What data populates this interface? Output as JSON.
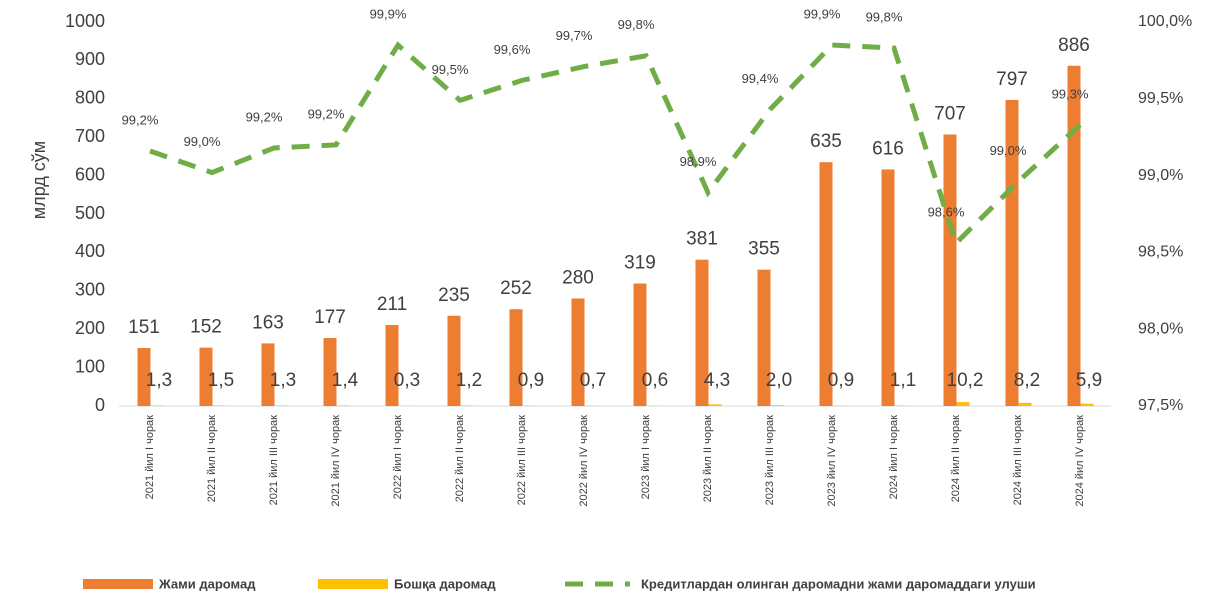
{
  "chart_data": {
    "type": "bar_line",
    "y_label": "млрд сўм",
    "categories": [
      "2021 йил I чорак",
      "2021 йил II чорак",
      "2021 йил III чорак",
      "2021 йил IV чорак",
      "2022 йил I чорак",
      "2022 йил II чорак",
      "2022 йил III чорак",
      "2022 йил IV чорак",
      "2023 йил I чорак",
      "2023 йил II чорак",
      "2023 йил III чорак",
      "2023 йил IV чорак",
      "2024 йил I чорак",
      "2024 йил II чорак",
      "2024 йил III чорак",
      "2024 йил IV чорак"
    ],
    "series": [
      {
        "name": "Жами даромад",
        "color": "#ed7d31",
        "type": "bar",
        "values": [
          151,
          152,
          163,
          177,
          211,
          235,
          252,
          280,
          319,
          381,
          355,
          635,
          616,
          707,
          797,
          886
        ]
      },
      {
        "name": "Бошқа даромад",
        "color": "#ffc000",
        "type": "bar",
        "values": [
          1.3,
          1.5,
          1.3,
          1.4,
          0.3,
          1.2,
          0.9,
          0.7,
          0.6,
          4.3,
          2.0,
          0.9,
          1.1,
          10.2,
          8.2,
          5.9
        ],
        "value_labels": [
          "1,3",
          "1,5",
          "1,3",
          "1,4",
          "0,3",
          "1,2",
          "0,9",
          "0,7",
          "0,6",
          "4,3",
          "2,0",
          "0,9",
          "1,1",
          "10,2",
          "8,2",
          "5,9"
        ]
      },
      {
        "name": "Кредитлардан олинган даромадни жами даромаддаги улуши",
        "color": "#70ad47",
        "type": "line",
        "axis": "y2",
        "values": [
          99.16,
          99.02,
          99.18,
          99.2,
          99.85,
          99.49,
          99.62,
          99.71,
          99.78,
          98.89,
          99.43,
          99.85,
          99.83,
          98.56,
          98.96,
          99.33
        ],
        "value_labels": [
          "99,2%",
          "99,0%",
          "99,2%",
          "99,2%",
          "99,9%",
          "99,5%",
          "99,6%",
          "99,7%",
          "99,8%",
          "98,9%",
          "99,4%",
          "99,9%",
          "99,8%",
          "98,6%",
          "99,0%",
          "99,3%"
        ]
      }
    ],
    "ylim": [
      0,
      1000
    ],
    "yticks": [
      0,
      100,
      200,
      300,
      400,
      500,
      600,
      700,
      800,
      900,
      1000
    ],
    "y2lim": [
      97.5,
      100
    ],
    "y2ticks": [
      {
        "value": 97.5,
        "label": "97,5%"
      },
      {
        "value": 98,
        "label": "98,0%"
      },
      {
        "value": 98.5,
        "label": "98,5%"
      },
      {
        "value": 99,
        "label": "99,0%"
      },
      {
        "value": 99.5,
        "label": "99,5%"
      },
      {
        "value": 100,
        "label": "100,0%"
      }
    ],
    "legend": "bottom"
  }
}
